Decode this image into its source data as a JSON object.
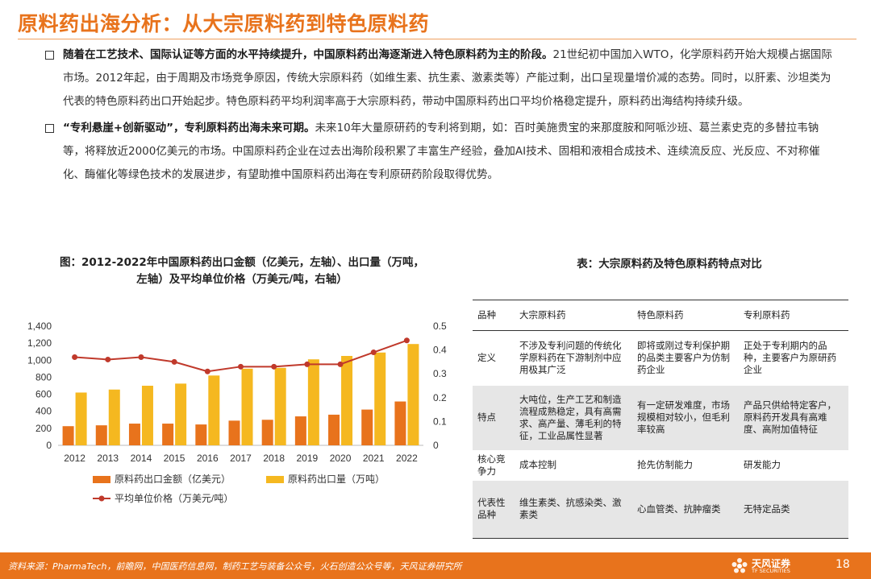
{
  "header": {
    "title": "原料药出海分析：从大宗原料药到特色原料药"
  },
  "bullets": [
    {
      "bold": "随着在工艺技术、国际认证等方面的水平持续提升，中国原料药出海逐渐进入特色原料药为主的阶段。",
      "text": "21世纪初中国加入WTO，化学原料药开始大规模占据国际市场。2012年起，由于周期及市场竞争原因，传统大宗原料药（如维生素、抗生素、激素类等）产能过剩，出口呈现量增价减的态势。同时，以肝素、沙坦类为代表的特色原料药出口开始起步。特色原料药平均利润率高于大宗原料药，带动中国原料药出口平均价格稳定提升，原料药出海结构持续升级。"
    },
    {
      "bold": "“专利悬崖+创新驱动”，专利原料药出海未来可期。",
      "text": "未来10年大量原研药的专利将到期，如：百时美施贵宝的来那度胺和阿哌沙班、葛兰素史克的多替拉韦钠等，将释放近2000亿美元的市场。中国原料药企业在过去出海阶段积累了丰富生产经验，叠加AI技术、固相和液相合成技术、连续流反应、光反应、不对称催化、酶催化等绿色技术的发展进步，有望助推中国原料药出海在专利原研药阶段取得优势。"
    }
  ],
  "chart": {
    "title_line1": "图：2012-2022年中国原料药出口金额（亿美元，左轴）、出口量（万吨，",
    "title_line2": "左轴）及平均单位价格（万美元/吨，右轴）"
  },
  "chart_data": {
    "type": "bar",
    "categories": [
      "2012",
      "2013",
      "2014",
      "2015",
      "2016",
      "2017",
      "2018",
      "2019",
      "2020",
      "2021",
      "2022"
    ],
    "series": [
      {
        "name": "原料药出口金额（亿美元）",
        "type": "bar",
        "axis": "left",
        "color": "#e8731c",
        "values": [
          225,
          235,
          255,
          255,
          245,
          290,
          300,
          340,
          360,
          420,
          515
        ]
      },
      {
        "name": "原料药出口量（万吨）",
        "type": "bar",
        "axis": "left",
        "color": "#f5b820",
        "values": [
          620,
          655,
          700,
          725,
          820,
          900,
          910,
          1010,
          1050,
          1090,
          1190
        ]
      },
      {
        "name": "平均单位价格（万美元/吨）",
        "type": "line",
        "axis": "right",
        "color": "#c0392b",
        "values": [
          0.37,
          0.36,
          0.37,
          0.35,
          0.31,
          0.33,
          0.33,
          0.34,
          0.34,
          0.39,
          0.44
        ]
      }
    ],
    "y_left": {
      "min": 0,
      "max": 1400,
      "ticks": [
        "0",
        "200",
        "400",
        "600",
        "800",
        "1,000",
        "1,200",
        "1,400"
      ]
    },
    "y_right": {
      "min": 0,
      "max": 0.5,
      "ticks": [
        "0",
        "0.1",
        "0.2",
        "0.3",
        "0.4",
        "0.5"
      ]
    },
    "grid": false,
    "legend": "bottom"
  },
  "table": {
    "title": "表：大宗原料药及特色原料药特点对比",
    "headers": [
      "品种",
      "大宗原料药",
      "特色原料药",
      "专利原料药"
    ],
    "rows": [
      {
        "label": "定义",
        "cells": [
          "不涉及专利问题的传统化学原料药在下游制剂中应用极其广泛",
          "即将或刚过专利保护期的品类主要客户为仿制药企业",
          "正处于专利期内的品种，主要客户为原研药企业"
        ]
      },
      {
        "label": "特点",
        "cells": [
          "大吨位，生产工艺和制造流程成熟稳定，具有高需求、高产量、薄毛利的特征，工业品属性显著",
          "有一定研发难度，市场规模相对较小，但毛利率较高",
          "产品只供给特定客户，原料药开发具有高难度、高附加值特征"
        ]
      },
      {
        "label": "核心竞争力",
        "cells": [
          "成本控制",
          "抢先仿制能力",
          "研发能力"
        ]
      },
      {
        "label": "代表性品种",
        "cells": [
          "维生素类、抗感染类、激素类",
          "心血管类、抗肿瘤类",
          "无特定品类"
        ]
      }
    ]
  },
  "footer": {
    "source": "资料来源：PharmaTech，前瞻网，中国医药信息网，制药工艺与装备公众号，火石创造公众号等，天风证券研究所",
    "logo_text": "天风证券",
    "logo_sub": "TF SECURITIES",
    "page": "18"
  },
  "colors": {
    "accent": "#e8731c",
    "bar_amount": "#e8731c",
    "bar_volume": "#f5b820",
    "price_line": "#c0392b"
  }
}
